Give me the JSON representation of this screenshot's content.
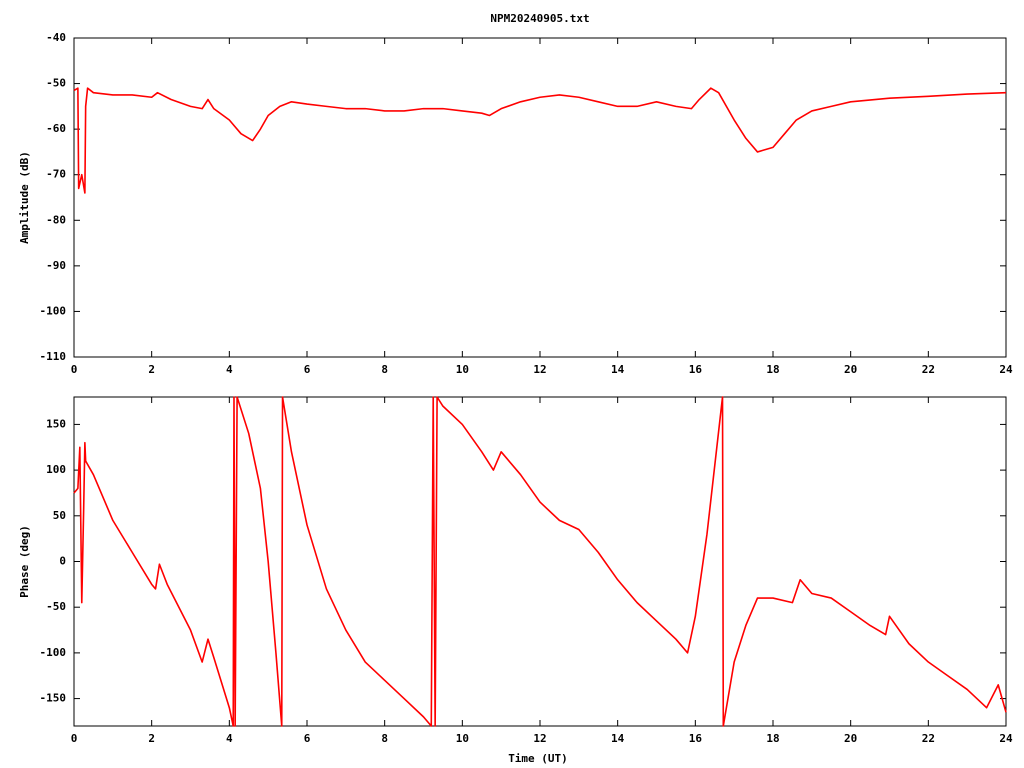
{
  "chart_data": [
    {
      "type": "line",
      "title": "NPM20240905.txt",
      "y_label": "Amplitude (dB)",
      "color": "#ff0000",
      "x": [
        0,
        0.1,
        0.12,
        0.2,
        0.28,
        0.3,
        0.35,
        0.5,
        1,
        1.5,
        2,
        2.15,
        2.5,
        3,
        3.3,
        3.45,
        3.6,
        4,
        4.3,
        4.6,
        4.8,
        5,
        5.3,
        5.6,
        6,
        6.5,
        7,
        7.5,
        8,
        8.5,
        9,
        9.5,
        10,
        10.5,
        10.7,
        11,
        11.5,
        12,
        12.5,
        13,
        13.5,
        14,
        14.5,
        15,
        15.5,
        15.9,
        16.1,
        16.4,
        16.6,
        17,
        17.3,
        17.6,
        18,
        18.3,
        18.6,
        19,
        19.5,
        20,
        21,
        22,
        23,
        24
      ],
      "values": [
        -51.5,
        -51,
        -73,
        -70,
        -74,
        -55,
        -51,
        -52,
        -52.5,
        -52.5,
        -53,
        -52,
        -53.5,
        -55,
        -55.5,
        -53.5,
        -55.5,
        -58,
        -61,
        -62.5,
        -60,
        -57,
        -55,
        -54,
        -54.5,
        -55,
        -55.5,
        -55.5,
        -56,
        -56,
        -55.5,
        -55.5,
        -56,
        -56.5,
        -57,
        -55.5,
        -54,
        -53,
        -52.5,
        -53,
        -54,
        -55,
        -55,
        -54,
        -55,
        -55.5,
        -53.5,
        -51,
        -52,
        -58,
        -62,
        -65,
        -64,
        -61,
        -58,
        -56,
        -55,
        -54,
        -53.2,
        -52.8,
        -52.3,
        -52
      ],
      "xlim": [
        0,
        24
      ],
      "xticks": [
        0,
        2,
        4,
        6,
        8,
        10,
        12,
        14,
        16,
        18,
        20,
        22,
        24
      ],
      "ylim": [
        -110,
        -40
      ],
      "yticks": [
        -110,
        -100,
        -90,
        -80,
        -70,
        -60,
        -50,
        -40
      ]
    },
    {
      "type": "line",
      "y_label": "Phase (deg)",
      "x_label": "Time (UT)",
      "color": "#ff0000",
      "x": [
        0,
        0.1,
        0.15,
        0.2,
        0.25,
        0.28,
        0.3,
        0.5,
        1,
        1.5,
        2,
        2.1,
        2.2,
        2.4,
        3,
        3.3,
        3.45,
        3.6,
        4,
        4.1,
        4.12,
        4.15,
        4.2,
        4.5,
        4.8,
        5,
        5.2,
        5.35,
        5.37,
        5.6,
        6,
        6.5,
        7,
        7.5,
        8,
        8.5,
        9,
        9.2,
        9.25,
        9.3,
        9.35,
        9.5,
        10,
        10.5,
        10.8,
        11,
        11.5,
        12,
        12.5,
        13,
        13.5,
        14,
        14.5,
        15,
        15.5,
        15.8,
        16,
        16.3,
        16.7,
        16.72,
        17,
        17.3,
        17.6,
        18,
        18.5,
        18.7,
        19,
        19.5,
        20,
        20.5,
        20.9,
        21,
        21.5,
        22,
        22.5,
        23,
        23.5,
        23.8,
        24
      ],
      "values": [
        75,
        80,
        125,
        -45,
        60,
        130,
        110,
        95,
        45,
        10,
        -25,
        -30,
        -3,
        -25,
        -75,
        -110,
        -85,
        -105,
        -160,
        -180,
        180,
        -180,
        180,
        140,
        80,
        0,
        -100,
        -180,
        180,
        120,
        40,
        -30,
        -75,
        -110,
        -130,
        -150,
        -170,
        -180,
        180,
        -180,
        180,
        170,
        150,
        120,
        100,
        120,
        95,
        65,
        45,
        35,
        10,
        -20,
        -45,
        -65,
        -85,
        -100,
        -60,
        30,
        180,
        -180,
        -110,
        -70,
        -40,
        -40,
        -45,
        -20,
        -35,
        -40,
        -55,
        -70,
        -80,
        -60,
        -90,
        -110,
        -125,
        -140,
        -160,
        -135,
        -165
      ],
      "xlim": [
        0,
        24
      ],
      "xticks": [
        0,
        2,
        4,
        6,
        8,
        10,
        12,
        14,
        16,
        18,
        20,
        22,
        24
      ],
      "ylim": [
        -180,
        180
      ],
      "yticks": [
        -150,
        -100,
        -50,
        0,
        50,
        100,
        150
      ]
    }
  ]
}
